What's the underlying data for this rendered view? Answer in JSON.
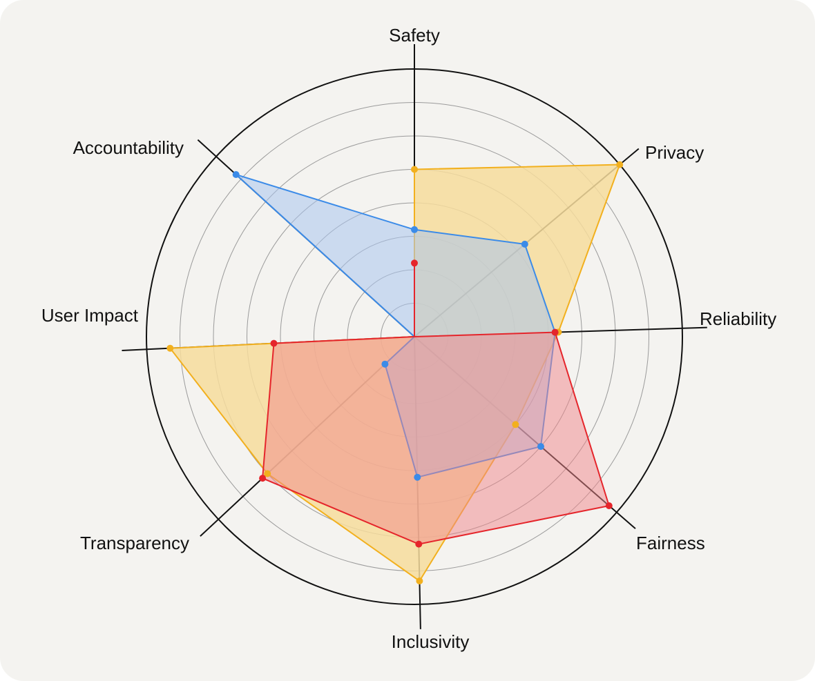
{
  "chart_data": {
    "type": "radar",
    "axes": [
      "Safety",
      "Privacy",
      "Reliability",
      "Fairness",
      "Inclusivity",
      "Transparency",
      "User Impact",
      "Accountability"
    ],
    "rlim": [
      0,
      8
    ],
    "rings": 8,
    "grid": true,
    "series": [
      {
        "color": "#f2b01e",
        "fill": "#f6dc9c",
        "values": [
          5,
          8,
          4.3,
          4,
          7.3,
          6,
          7.3,
          0
        ]
      },
      {
        "color": "#3b8be8",
        "fill": "#a9c4ef",
        "values": [
          3.2,
          4.3,
          4.2,
          5,
          4.2,
          1.2,
          0,
          7.2
        ]
      },
      {
        "color": "#e5252b",
        "fill": "#f0868a",
        "values": [
          2.2,
          0,
          4.2,
          7.7,
          6.2,
          6.2,
          4.2,
          0
        ]
      }
    ]
  }
}
